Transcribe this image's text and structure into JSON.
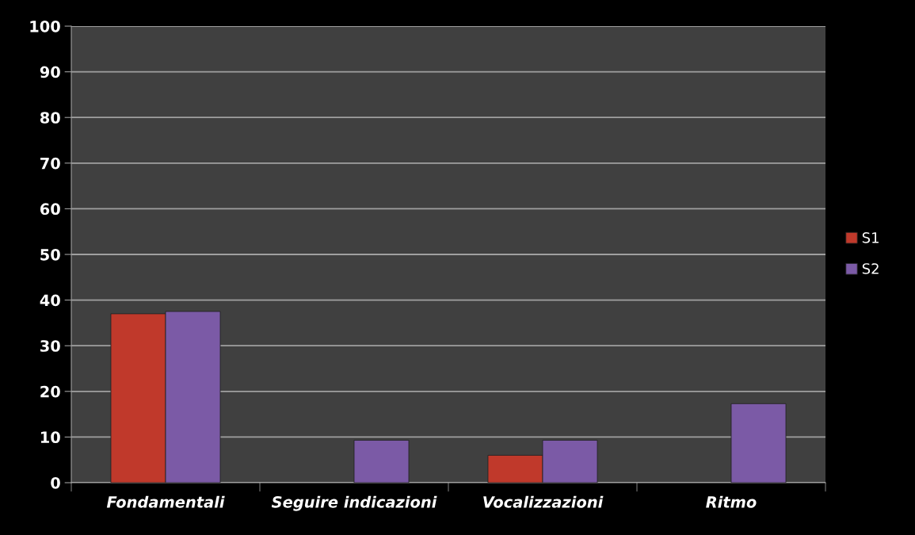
{
  "chart_data": {
    "type": "bar",
    "categories": [
      "Fondamentali",
      "Seguire indicazioni",
      "Vocalizzazioni",
      "Ritmo"
    ],
    "series": [
      {
        "name": "S1",
        "color": "#c0392b",
        "values": [
          37,
          null,
          6,
          null
        ]
      },
      {
        "name": "S2",
        "color": "#7b5aa6",
        "values": [
          37.5,
          9.3,
          9.3,
          17.3
        ]
      }
    ],
    "ylim": [
      0,
      100
    ],
    "yticks": [
      0,
      10,
      20,
      30,
      40,
      50,
      60,
      70,
      80,
      90,
      100
    ],
    "grid": "y",
    "legend": "right"
  }
}
